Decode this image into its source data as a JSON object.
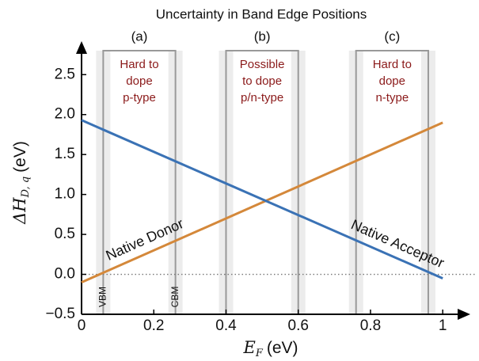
{
  "chart_data": {
    "type": "line",
    "title": "Uncertainty in Band Edge Positions",
    "xlabel": {
      "symbol": "E",
      "subscript": "F",
      "unit": "(eV)"
    },
    "ylabel": {
      "symbol": "ΔH",
      "subscript": "D, q",
      "unit": "(eV)"
    },
    "x": [
      0,
      1
    ],
    "series": [
      {
        "name": "Native Donor",
        "color": "#d4883a",
        "values": [
          -0.1,
          1.9
        ]
      },
      {
        "name": "Native Acceptor",
        "color": "#3a72b5",
        "values": [
          1.93,
          -0.05
        ]
      }
    ],
    "xlim": [
      0,
      1.05
    ],
    "ylim": [
      -0.5,
      2.8
    ],
    "xticks": [
      0,
      0.2,
      0.4,
      0.6,
      0.8,
      1
    ],
    "yticks": [
      {
        "value": -0.5,
        "label": "−0.5"
      },
      {
        "value": 0,
        "label": "0.0"
      },
      0.5,
      {
        "value": 1,
        "label": "1.0"
      },
      1.5,
      {
        "value": 2,
        "label": "2.0"
      },
      2.5
    ],
    "reference_line": 0,
    "windows": [
      {
        "label": "(a)",
        "vbm": 0.06,
        "cbm": 0.26,
        "text": [
          "Hard to",
          "dope",
          "p-type"
        ],
        "edge_labels": [
          "VBM",
          "CBM"
        ]
      },
      {
        "label": "(b)",
        "vbm": 0.4,
        "cbm": 0.6,
        "text": [
          "Possible",
          "to dope",
          "p/n-type"
        ]
      },
      {
        "label": "(c)",
        "vbm": 0.76,
        "cbm": 0.96,
        "text": [
          "Hard to",
          "dope",
          "n-type"
        ]
      }
    ]
  }
}
